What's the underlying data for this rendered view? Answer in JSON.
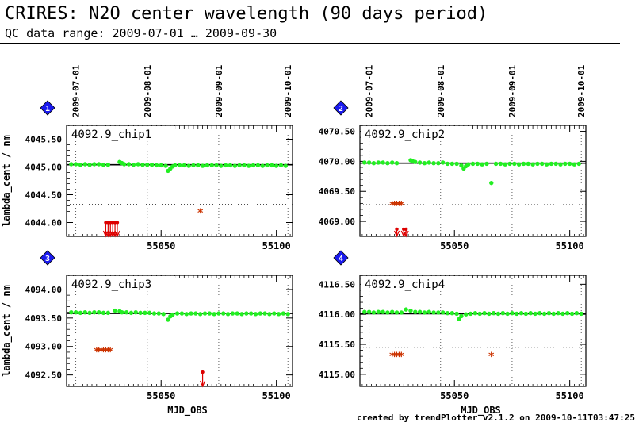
{
  "title": "CRIRES: N2O center wavelength (90 days period)",
  "subtitle": "QC data range: 2009-07-01 … 2009-09-30",
  "footer": "created by trendPlotter v2.1.2 on 2009-10-11T03:47:25",
  "colors": {
    "data": "#22ee22",
    "outlier": "#cc3300",
    "limit": "#dd0000",
    "badge": "#1a1aee",
    "line": "#000000"
  },
  "chart_data": [
    {
      "type": "scatter",
      "badge": "1",
      "label": "4092.9_chip1",
      "xlabel": "",
      "ylabel": "lambda_cent / nm",
      "xlim": [
        55009,
        55107
      ],
      "ylim": [
        4043.75,
        4045.75
      ],
      "xticks": [
        55050,
        55100
      ],
      "yticks": [
        4044.0,
        4044.5,
        4045.0,
        4045.5
      ],
      "date_ticks": [
        {
          "x": 55013,
          "label": "2009-07-01"
        },
        {
          "x": 55044,
          "label": "2009-08-01"
        },
        {
          "x": 55075,
          "label": "2009-09-01"
        },
        {
          "x": 55105,
          "label": "2009-10-01"
        }
      ],
      "reference": 4045.04,
      "threshold": 4044.33,
      "points": [
        [
          55011,
          4045.05
        ],
        [
          55013,
          4045.05
        ],
        [
          55015,
          4045.04
        ],
        [
          55017,
          4045.05
        ],
        [
          55019,
          4045.04
        ],
        [
          55021,
          4045.05
        ],
        [
          55023,
          4045.05
        ],
        [
          55025,
          4045.04
        ],
        [
          55027,
          4045.04
        ],
        [
          55032,
          4045.09
        ],
        [
          55033,
          4045.07
        ],
        [
          55034,
          4045.05
        ],
        [
          55036,
          4045.05
        ],
        [
          55038,
          4045.04
        ],
        [
          55040,
          4045.05
        ],
        [
          55042,
          4045.04
        ],
        [
          55044,
          4045.04
        ],
        [
          55046,
          4045.04
        ],
        [
          55048,
          4045.03
        ],
        [
          55050,
          4045.03
        ],
        [
          55052,
          4045.02
        ],
        [
          55053,
          4044.93
        ],
        [
          55054,
          4044.97
        ],
        [
          55055,
          4045.01
        ],
        [
          55056,
          4045.03
        ],
        [
          55058,
          4045.03
        ],
        [
          55060,
          4045.03
        ],
        [
          55062,
          4045.02
        ],
        [
          55064,
          4045.03
        ],
        [
          55066,
          4045.03
        ],
        [
          55068,
          4045.02
        ],
        [
          55070,
          4045.03
        ],
        [
          55072,
          4045.03
        ],
        [
          55074,
          4045.03
        ],
        [
          55076,
          4045.02
        ],
        [
          55078,
          4045.03
        ],
        [
          55080,
          4045.03
        ],
        [
          55082,
          4045.02
        ],
        [
          55084,
          4045.03
        ],
        [
          55086,
          4045.03
        ],
        [
          55088,
          4045.02
        ],
        [
          55090,
          4045.03
        ],
        [
          55092,
          4045.03
        ],
        [
          55094,
          4045.02
        ],
        [
          55096,
          4045.03
        ],
        [
          55098,
          4045.03
        ],
        [
          55100,
          4045.02
        ],
        [
          55102,
          4045.03
        ],
        [
          55104,
          4045.02
        ]
      ],
      "outliers": [
        [
          55067,
          4044.18
        ]
      ],
      "limits": [
        [
          55026,
          4044.0
        ],
        [
          55027,
          4044.0
        ],
        [
          55028,
          4044.0
        ],
        [
          55029,
          4044.0
        ],
        [
          55030,
          4044.0
        ],
        [
          55031,
          4044.0
        ]
      ]
    },
    {
      "type": "scatter",
      "badge": "2",
      "label": "4092.9_chip2",
      "xlabel": "",
      "ylabel": "",
      "xlim": [
        55009,
        55107
      ],
      "ylim": [
        4068.75,
        4070.6
      ],
      "xticks": [
        55050,
        55100
      ],
      "yticks": [
        4069.0,
        4069.5,
        4070.0,
        4070.5
      ],
      "date_ticks": [
        {
          "x": 55013,
          "label": "2009-07-01"
        },
        {
          "x": 55044,
          "label": "2009-08-01"
        },
        {
          "x": 55075,
          "label": "2009-09-01"
        },
        {
          "x": 55105,
          "label": "2009-10-01"
        }
      ],
      "reference": 4069.97,
      "threshold": 4069.28,
      "points": [
        [
          55011,
          4069.98
        ],
        [
          55013,
          4069.98
        ],
        [
          55015,
          4069.97
        ],
        [
          55017,
          4069.98
        ],
        [
          55019,
          4069.98
        ],
        [
          55021,
          4069.97
        ],
        [
          55023,
          4069.98
        ],
        [
          55025,
          4069.97
        ],
        [
          55031,
          4070.02
        ],
        [
          55032,
          4070.0
        ],
        [
          55033,
          4069.99
        ],
        [
          55035,
          4069.98
        ],
        [
          55037,
          4069.97
        ],
        [
          55039,
          4069.98
        ],
        [
          55041,
          4069.97
        ],
        [
          55043,
          4069.97
        ],
        [
          55045,
          4069.98
        ],
        [
          55047,
          4069.96
        ],
        [
          55049,
          4069.96
        ],
        [
          55051,
          4069.96
        ],
        [
          55053,
          4069.93
        ],
        [
          55054,
          4069.88
        ],
        [
          55055,
          4069.92
        ],
        [
          55056,
          4069.95
        ],
        [
          55058,
          4069.96
        ],
        [
          55060,
          4069.96
        ],
        [
          55062,
          4069.95
        ],
        [
          55064,
          4069.96
        ],
        [
          55066,
          4069.64
        ],
        [
          55068,
          4069.96
        ],
        [
          55070,
          4069.96
        ],
        [
          55072,
          4069.95
        ],
        [
          55074,
          4069.96
        ],
        [
          55076,
          4069.96
        ],
        [
          55078,
          4069.95
        ],
        [
          55080,
          4069.96
        ],
        [
          55082,
          4069.96
        ],
        [
          55084,
          4069.95
        ],
        [
          55086,
          4069.96
        ],
        [
          55088,
          4069.96
        ],
        [
          55090,
          4069.95
        ],
        [
          55092,
          4069.96
        ],
        [
          55094,
          4069.96
        ],
        [
          55096,
          4069.95
        ],
        [
          55098,
          4069.96
        ],
        [
          55100,
          4069.96
        ],
        [
          55102,
          4069.95
        ],
        [
          55104,
          4069.96
        ]
      ],
      "outliers": [
        [
          55023,
          4069.27
        ],
        [
          55024,
          4069.27
        ],
        [
          55025,
          4069.27
        ],
        [
          55026,
          4069.27
        ],
        [
          55027,
          4069.27
        ]
      ],
      "limits": [
        [
          55025,
          4068.87
        ],
        [
          55028,
          4068.87
        ],
        [
          55029,
          4068.87
        ]
      ]
    },
    {
      "type": "scatter",
      "badge": "3",
      "label": "4092.9_chip3",
      "xlabel": "MJD_OBS",
      "ylabel": "lambda_cent / nm",
      "xlim": [
        55009,
        55107
      ],
      "ylim": [
        4092.3,
        4094.25
      ],
      "xticks": [
        55050,
        55100
      ],
      "yticks": [
        4092.5,
        4093.0,
        4093.5,
        4094.0
      ],
      "date_ticks": [],
      "reference": 4093.58,
      "threshold": 4092.92,
      "points": [
        [
          55011,
          4093.6
        ],
        [
          55013,
          4093.6
        ],
        [
          55015,
          4093.59
        ],
        [
          55017,
          4093.6
        ],
        [
          55019,
          4093.59
        ],
        [
          55021,
          4093.6
        ],
        [
          55023,
          4093.6
        ],
        [
          55025,
          4093.59
        ],
        [
          55027,
          4093.59
        ],
        [
          55030,
          4093.63
        ],
        [
          55032,
          4093.62
        ],
        [
          55033,
          4093.6
        ],
        [
          55035,
          4093.6
        ],
        [
          55037,
          4093.59
        ],
        [
          55039,
          4093.6
        ],
        [
          55041,
          4093.59
        ],
        [
          55043,
          4093.59
        ],
        [
          55045,
          4093.59
        ],
        [
          55047,
          4093.58
        ],
        [
          55049,
          4093.58
        ],
        [
          55051,
          4093.57
        ],
        [
          55053,
          4093.47
        ],
        [
          55054,
          4093.53
        ],
        [
          55055,
          4093.56
        ],
        [
          55057,
          4093.58
        ],
        [
          55059,
          4093.58
        ],
        [
          55061,
          4093.57
        ],
        [
          55063,
          4093.58
        ],
        [
          55065,
          4093.58
        ],
        [
          55067,
          4093.57
        ],
        [
          55069,
          4093.58
        ],
        [
          55071,
          4093.58
        ],
        [
          55073,
          4093.57
        ],
        [
          55075,
          4093.58
        ],
        [
          55077,
          4093.58
        ],
        [
          55079,
          4093.57
        ],
        [
          55081,
          4093.58
        ],
        [
          55083,
          4093.58
        ],
        [
          55085,
          4093.57
        ],
        [
          55087,
          4093.58
        ],
        [
          55089,
          4093.58
        ],
        [
          55091,
          4093.57
        ],
        [
          55093,
          4093.58
        ],
        [
          55095,
          4093.58
        ],
        [
          55097,
          4093.57
        ],
        [
          55099,
          4093.58
        ],
        [
          55101,
          4093.57
        ],
        [
          55103,
          4093.58
        ],
        [
          55105,
          4093.57
        ]
      ],
      "outliers": [
        [
          55022,
          4092.91
        ],
        [
          55023,
          4092.91
        ],
        [
          55024,
          4092.91
        ],
        [
          55025,
          4092.91
        ],
        [
          55026,
          4092.91
        ],
        [
          55027,
          4092.91
        ],
        [
          55028,
          4092.91
        ]
      ],
      "limits": [
        [
          55068,
          4092.55
        ]
      ]
    },
    {
      "type": "scatter",
      "badge": "4",
      "label": "4092.9_chip4",
      "xlabel": "MJD_OBS",
      "ylabel": "",
      "xlim": [
        55009,
        55107
      ],
      "ylim": [
        4114.8,
        4116.65
      ],
      "xticks": [
        55050,
        55100
      ],
      "yticks": [
        4115.0,
        4115.5,
        4116.0,
        4116.5
      ],
      "date_ticks": [],
      "reference": 4116.01,
      "threshold": 4115.45,
      "points": [
        [
          55011,
          4116.04
        ],
        [
          55013,
          4116.04
        ],
        [
          55015,
          4116.03
        ],
        [
          55017,
          4116.04
        ],
        [
          55019,
          4116.04
        ],
        [
          55021,
          4116.03
        ],
        [
          55023,
          4116.04
        ],
        [
          55025,
          4116.03
        ],
        [
          55027,
          4116.03
        ],
        [
          55029,
          4116.08
        ],
        [
          55031,
          4116.06
        ],
        [
          55033,
          4116.04
        ],
        [
          55035,
          4116.04
        ],
        [
          55037,
          4116.03
        ],
        [
          55039,
          4116.04
        ],
        [
          55041,
          4116.03
        ],
        [
          55043,
          4116.03
        ],
        [
          55045,
          4116.03
        ],
        [
          55047,
          4116.02
        ],
        [
          55049,
          4116.02
        ],
        [
          55051,
          4116.01
        ],
        [
          55052,
          4115.92
        ],
        [
          55053,
          4115.97
        ],
        [
          55055,
          4116.0
        ],
        [
          55057,
          4116.01
        ],
        [
          55059,
          4116.02
        ],
        [
          55061,
          4116.01
        ],
        [
          55063,
          4116.02
        ],
        [
          55065,
          4116.01
        ],
        [
          55067,
          4116.02
        ],
        [
          55069,
          4116.01
        ],
        [
          55071,
          4116.02
        ],
        [
          55073,
          4116.01
        ],
        [
          55075,
          4116.02
        ],
        [
          55077,
          4116.01
        ],
        [
          55079,
          4116.02
        ],
        [
          55081,
          4116.01
        ],
        [
          55083,
          4116.02
        ],
        [
          55085,
          4116.01
        ],
        [
          55087,
          4116.02
        ],
        [
          55089,
          4116.01
        ],
        [
          55091,
          4116.02
        ],
        [
          55093,
          4116.01
        ],
        [
          55095,
          4116.02
        ],
        [
          55097,
          4116.01
        ],
        [
          55099,
          4116.02
        ],
        [
          55101,
          4116.01
        ],
        [
          55103,
          4116.02
        ],
        [
          55105,
          4116.01
        ]
      ],
      "outliers": [
        [
          55023,
          4115.3
        ],
        [
          55024,
          4115.3
        ],
        [
          55025,
          4115.3
        ],
        [
          55026,
          4115.3
        ],
        [
          55027,
          4115.3
        ],
        [
          55066,
          4115.3
        ]
      ],
      "limits": []
    }
  ]
}
